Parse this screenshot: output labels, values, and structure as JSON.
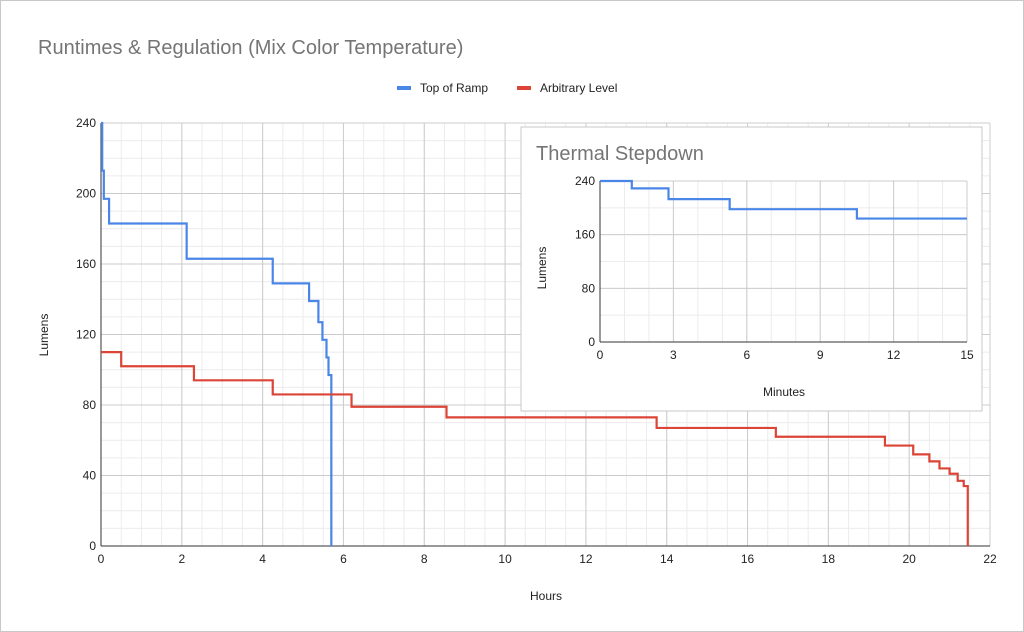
{
  "chart_data": [
    {
      "type": "line",
      "title": "Runtimes & Regulation (Mix Color Temperature)",
      "xlabel": "Hours",
      "ylabel": "Lumens",
      "xlim": [
        0,
        22
      ],
      "ylim": [
        0,
        240
      ],
      "xticks": [
        0,
        2,
        4,
        6,
        8,
        10,
        12,
        14,
        16,
        18,
        20,
        22
      ],
      "yticks": [
        0,
        40,
        80,
        120,
        160,
        200,
        240
      ],
      "grid": true,
      "legend": "top-center",
      "step": true,
      "series": [
        {
          "name": "Top of Ramp",
          "color": "#4a86e8",
          "points": [
            [
              0,
              240
            ],
            [
              0.03,
              213
            ],
            [
              0.07,
              197
            ],
            [
              0.2,
              183
            ],
            [
              2.12,
              163
            ],
            [
              4.25,
              149
            ],
            [
              5.15,
              139
            ],
            [
              5.38,
              127
            ],
            [
              5.48,
              117
            ],
            [
              5.58,
              107
            ],
            [
              5.63,
              97
            ],
            [
              5.7,
              0
            ]
          ]
        },
        {
          "name": "Arbitrary Level",
          "color": "#db4437",
          "points": [
            [
              0,
              110
            ],
            [
              0.5,
              102
            ],
            [
              2.3,
              94
            ],
            [
              4.25,
              86
            ],
            [
              6.2,
              79
            ],
            [
              8.55,
              73
            ],
            [
              13.75,
              67
            ],
            [
              16.7,
              62
            ],
            [
              19.4,
              57
            ],
            [
              20.1,
              52
            ],
            [
              20.5,
              48
            ],
            [
              20.75,
              44
            ],
            [
              21.0,
              41
            ],
            [
              21.2,
              37
            ],
            [
              21.35,
              34
            ],
            [
              21.45,
              0
            ]
          ]
        }
      ]
    },
    {
      "type": "line",
      "title": "Thermal Stepdown",
      "xlabel": "Minutes",
      "ylabel": "Lumens",
      "xlim": [
        0,
        15
      ],
      "ylim": [
        0,
        240
      ],
      "xticks": [
        0,
        3,
        6,
        9,
        12,
        15
      ],
      "yticks": [
        0,
        80,
        160,
        240
      ],
      "grid": true,
      "step": true,
      "series": [
        {
          "name": "Top of Ramp",
          "color": "#4a86e8",
          "points": [
            [
              0,
              240
            ],
            [
              1.3,
              229
            ],
            [
              2.8,
              213
            ],
            [
              5.3,
              198
            ],
            [
              10.5,
              184
            ],
            [
              15,
              184
            ]
          ]
        }
      ]
    }
  ]
}
